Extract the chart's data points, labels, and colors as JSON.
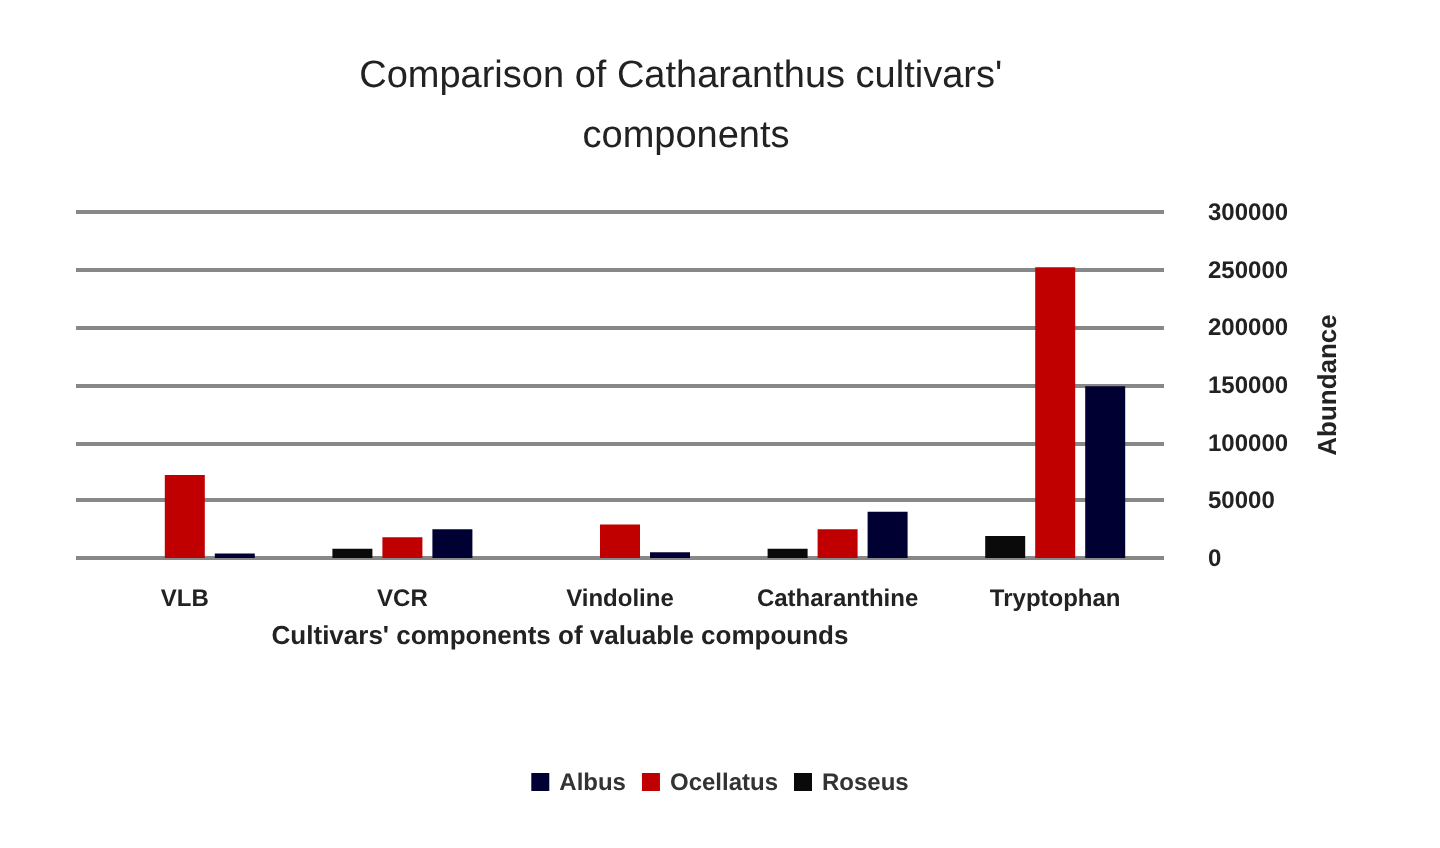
{
  "chart_data": {
    "type": "bar",
    "title": "Comparison of Catharanthus cultivars' components",
    "xlabel": "Cultivars' components of valuable compounds",
    "ylabel": "Abundance",
    "categories": [
      "VLB",
      "VCR",
      "Vindoline",
      "Catharanthine",
      "Tryptophan"
    ],
    "series": [
      {
        "name": "Albus",
        "color": "#000033",
        "values": [
          4000,
          25000,
          5000,
          40000,
          149000
        ]
      },
      {
        "name": "Ocellatus",
        "color": "#c00000",
        "values": [
          72000,
          18000,
          29000,
          25000,
          252000
        ]
      },
      {
        "name": "Roseus",
        "color": "#0a0a0a",
        "values": [
          0,
          8000,
          0,
          8000,
          19000
        ]
      }
    ],
    "ylim": [
      0,
      300000
    ],
    "yticks": [
      0,
      50000,
      100000,
      150000,
      200000,
      250000,
      300000
    ],
    "grid": true,
    "legend": "bottom"
  }
}
